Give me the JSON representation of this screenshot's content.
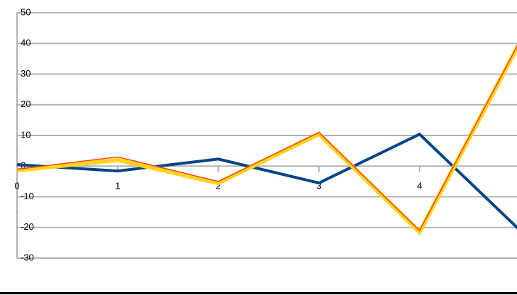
{
  "chart_data": {
    "type": "line",
    "x": [
      0,
      1,
      2,
      3,
      4,
      5
    ],
    "xlim": [
      0,
      5
    ],
    "xticks": [
      0,
      1,
      2,
      3,
      4
    ],
    "ylim": [
      -30,
      50
    ],
    "yticks": [
      -30,
      -20,
      -10,
      0,
      10,
      20,
      30,
      40,
      50
    ],
    "grid": true,
    "series": [
      {
        "color": "#004586",
        "width": 4,
        "values": [
          0.5,
          -1.6,
          2.3,
          -5.5,
          10.4,
          -21
        ]
      },
      {
        "color": "#ffd320",
        "width": 6,
        "values": [
          -1.4,
          2,
          -5.5,
          10.5,
          -21.5,
          40.5
        ]
      },
      {
        "color": "#ff420e",
        "width": 1.5,
        "values": [
          -1,
          3,
          -5,
          11,
          -21,
          41
        ]
      }
    ]
  }
}
